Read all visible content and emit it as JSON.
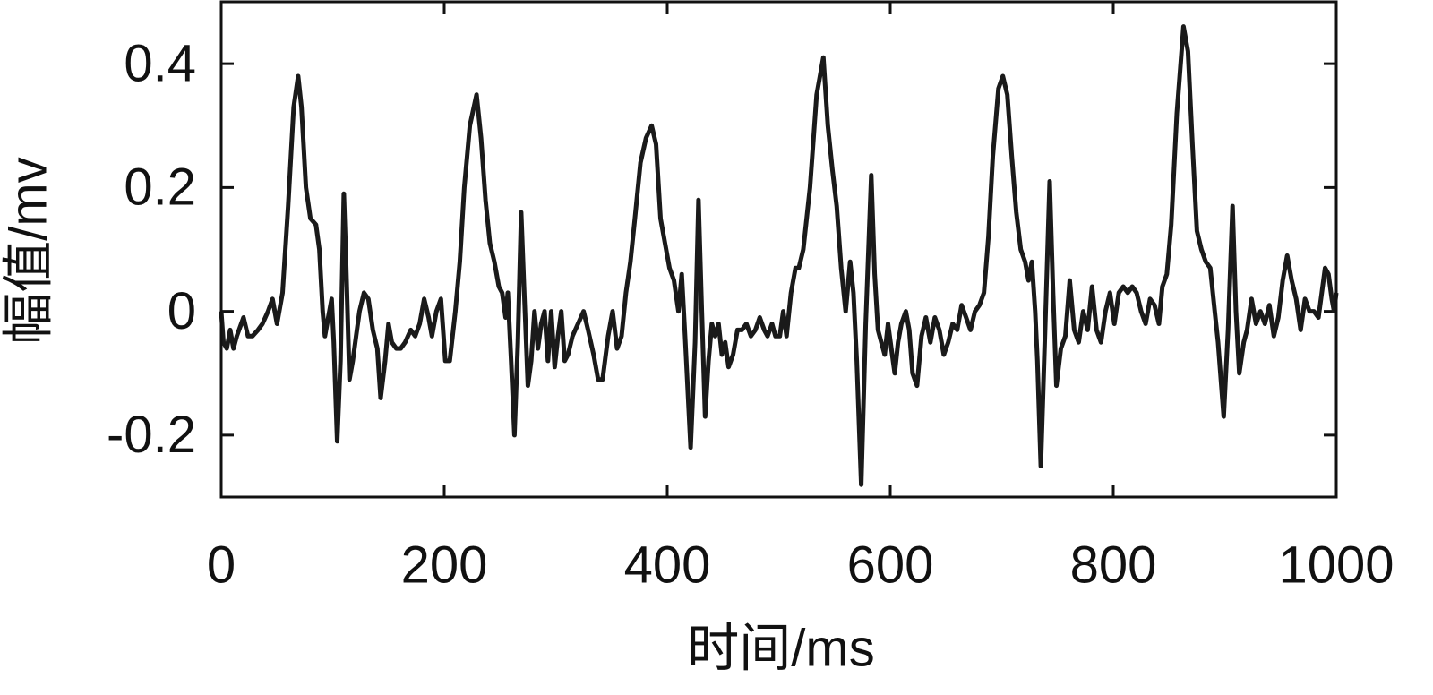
{
  "chart_data": {
    "type": "line",
    "x_label": "时间/ms",
    "y_label": "幅值/mv",
    "color": "#1a1a1a",
    "xlim": [
      0,
      1000
    ],
    "xticks": [
      0,
      200,
      400,
      600,
      800,
      1000
    ],
    "ylim": [
      -0.3,
      0.5
    ],
    "yticks": [
      -0.2,
      0,
      0.2,
      0.4
    ],
    "x": [
      0,
      2,
      5,
      8,
      11,
      14,
      20,
      24,
      28,
      33,
      37,
      42,
      46,
      50,
      55,
      60,
      65,
      69,
      72,
      76,
      80,
      85,
      88,
      91,
      93,
      96,
      99,
      101,
      104,
      107,
      110,
      112,
      115,
      118,
      121,
      124,
      128,
      132,
      136,
      140,
      143,
      147,
      150,
      153,
      157,
      161,
      165,
      170,
      174,
      178,
      182,
      186,
      189,
      193,
      197,
      201,
      205,
      210,
      214,
      218,
      223,
      229,
      233,
      237,
      241,
      245,
      249,
      252,
      255,
      257,
      260,
      263,
      266,
      269,
      272,
      275,
      278,
      281,
      284,
      287,
      290,
      293,
      296,
      299,
      302,
      305,
      308,
      311,
      315,
      320,
      325,
      329,
      334,
      338,
      342,
      347,
      351,
      355,
      359,
      363,
      367,
      371,
      376,
      381,
      386,
      390,
      394,
      398,
      402,
      406,
      410,
      413,
      416,
      421,
      425,
      428,
      431,
      434,
      437,
      440,
      443,
      446,
      449,
      452,
      455,
      459,
      463,
      467,
      471,
      475,
      479,
      483,
      487,
      490,
      494,
      497,
      501,
      504,
      507,
      511,
      515,
      518,
      522,
      528,
      534,
      540,
      544,
      548,
      552,
      556,
      560,
      564,
      567,
      570,
      574,
      578,
      583,
      586,
      589,
      592,
      595,
      598,
      601,
      604,
      607,
      610,
      614,
      617,
      620,
      624,
      628,
      632,
      636,
      640,
      644,
      648,
      652,
      656,
      660,
      664,
      668,
      672,
      676,
      680,
      684,
      688,
      692,
      697,
      701,
      705,
      709,
      713,
      717,
      721,
      724,
      727,
      730,
      732,
      735,
      739,
      743,
      746,
      749,
      753,
      757,
      761,
      765,
      769,
      773,
      777,
      781,
      785,
      789,
      793,
      797,
      801,
      805,
      809,
      813,
      817,
      821,
      825,
      829,
      833,
      837,
      841,
      844,
      848,
      852,
      857,
      863,
      867,
      871,
      875,
      879,
      883,
      887,
      891,
      894,
      899,
      903,
      907,
      910,
      913,
      917,
      920,
      924,
      928,
      932,
      936,
      940,
      944,
      948,
      952,
      956,
      960,
      964,
      968,
      972,
      976,
      980,
      984,
      987,
      990,
      993,
      996,
      998,
      1000
    ],
    "values": [
      0.0,
      -0.05,
      -0.06,
      -0.03,
      -0.06,
      -0.04,
      -0.01,
      -0.04,
      -0.04,
      -0.03,
      -0.02,
      0.0,
      0.02,
      -0.02,
      0.03,
      0.17,
      0.33,
      0.38,
      0.33,
      0.2,
      0.15,
      0.14,
      0.1,
      0.0,
      -0.04,
      -0.01,
      0.02,
      -0.05,
      -0.21,
      -0.08,
      0.19,
      0.08,
      -0.11,
      -0.08,
      -0.04,
      0.0,
      0.03,
      0.02,
      -0.03,
      -0.06,
      -0.14,
      -0.08,
      -0.02,
      -0.05,
      -0.06,
      -0.06,
      -0.05,
      -0.03,
      -0.04,
      -0.02,
      0.02,
      -0.01,
      -0.04,
      0.0,
      0.02,
      -0.08,
      -0.08,
      0.0,
      0.08,
      0.2,
      0.3,
      0.35,
      0.28,
      0.18,
      0.11,
      0.08,
      0.04,
      0.03,
      -0.01,
      0.03,
      -0.08,
      -0.2,
      -0.05,
      0.16,
      0.02,
      -0.12,
      -0.08,
      0.0,
      -0.06,
      -0.02,
      0.0,
      -0.08,
      0.0,
      -0.09,
      -0.04,
      0.0,
      -0.08,
      -0.07,
      -0.04,
      -0.02,
      0.0,
      -0.03,
      -0.07,
      -0.11,
      -0.11,
      -0.04,
      0.0,
      -0.06,
      -0.04,
      0.03,
      0.08,
      0.15,
      0.24,
      0.28,
      0.3,
      0.27,
      0.15,
      0.11,
      0.07,
      0.05,
      0.0,
      0.06,
      -0.04,
      -0.22,
      -0.05,
      0.18,
      0.0,
      -0.17,
      -0.08,
      -0.02,
      -0.04,
      -0.02,
      -0.07,
      -0.05,
      -0.09,
      -0.07,
      -0.03,
      -0.03,
      -0.02,
      -0.04,
      -0.03,
      -0.01,
      -0.03,
      -0.04,
      -0.02,
      -0.04,
      -0.04,
      0.0,
      -0.04,
      0.03,
      0.07,
      0.07,
      0.1,
      0.2,
      0.35,
      0.41,
      0.3,
      0.23,
      0.17,
      0.07,
      0.0,
      0.08,
      0.03,
      -0.08,
      -0.28,
      -0.02,
      0.22,
      0.06,
      -0.03,
      -0.05,
      -0.07,
      -0.02,
      -0.06,
      -0.1,
      -0.05,
      -0.02,
      0.0,
      -0.03,
      -0.1,
      -0.12,
      -0.04,
      -0.01,
      -0.05,
      -0.01,
      -0.03,
      -0.07,
      -0.05,
      -0.02,
      -0.03,
      0.01,
      -0.01,
      -0.03,
      0.0,
      0.01,
      0.03,
      0.12,
      0.25,
      0.36,
      0.38,
      0.35,
      0.25,
      0.16,
      0.1,
      0.08,
      0.05,
      0.08,
      0.0,
      -0.08,
      -0.25,
      -0.02,
      0.21,
      0.03,
      -0.12,
      -0.06,
      -0.04,
      0.05,
      -0.03,
      -0.05,
      0.0,
      -0.03,
      0.04,
      -0.03,
      -0.05,
      0.0,
      0.03,
      -0.02,
      0.03,
      0.04,
      0.03,
      0.04,
      0.03,
      0.0,
      -0.02,
      0.02,
      0.01,
      -0.02,
      0.04,
      0.06,
      0.14,
      0.32,
      0.46,
      0.42,
      0.27,
      0.13,
      0.1,
      0.08,
      0.07,
      0.0,
      -0.05,
      -0.17,
      -0.03,
      0.17,
      0.0,
      -0.1,
      -0.05,
      -0.03,
      0.02,
      -0.02,
      0.0,
      -0.02,
      0.01,
      -0.04,
      -0.01,
      0.05,
      0.09,
      0.05,
      0.02,
      -0.03,
      0.02,
      0.0,
      0.0,
      -0.01,
      0.03,
      0.07,
      0.06,
      0.02,
      0.0,
      0.03
    ]
  }
}
